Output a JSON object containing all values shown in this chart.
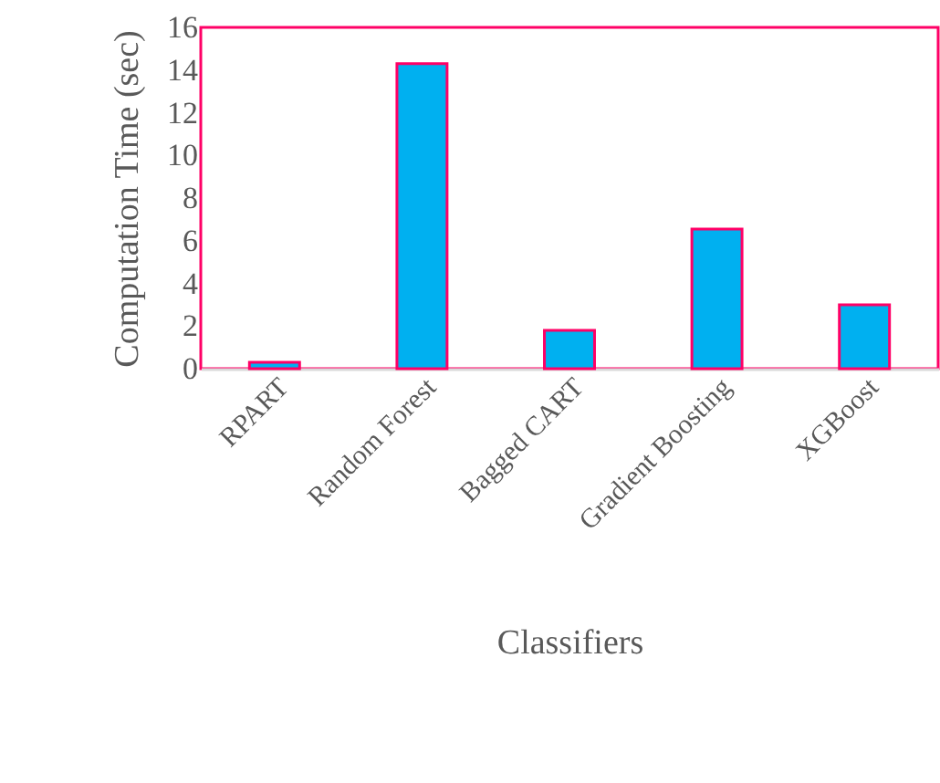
{
  "chart_data": {
    "type": "bar",
    "xlabel": "Classifiers",
    "ylabel": "Computation Time (sec)",
    "categories": [
      "RPART",
      "Random Forest",
      "Bagged CART",
      "Gradient Boosting",
      "XGBoost"
    ],
    "values": [
      0.3,
      14.3,
      1.8,
      6.55,
      3.0
    ],
    "color": "#00b0f0",
    "ylim": [
      0,
      16
    ],
    "yticks": [
      0,
      2,
      4,
      6,
      8,
      10,
      12,
      14,
      16
    ],
    "grid": false
  }
}
